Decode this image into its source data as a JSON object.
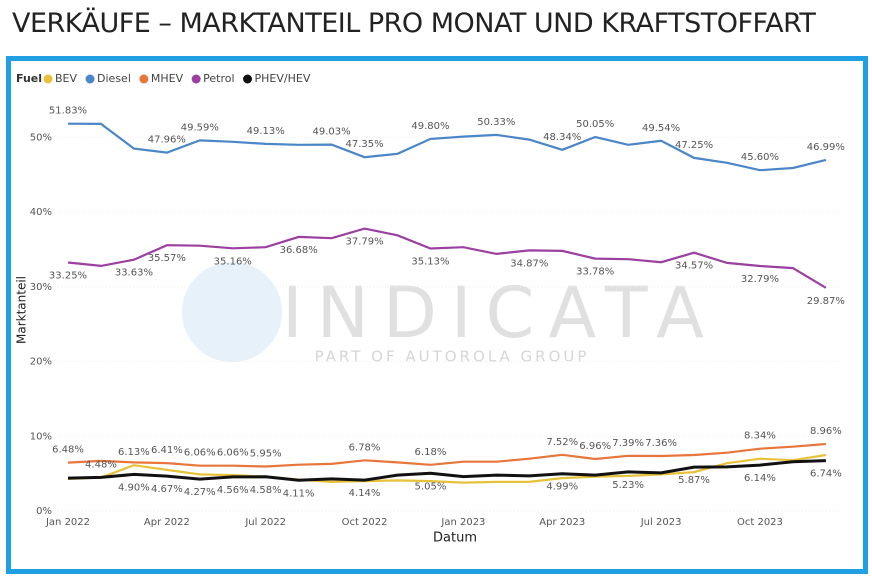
{
  "chart_data": {
    "type": "line",
    "title": "VERKÄUFE – MARKTANTEIL PRO MONAT UND KRAFTSTOFFART",
    "legend_title": "Fuel",
    "x_label": "Datum",
    "y_label": "Marktanteil",
    "watermark": "INDICATA",
    "watermark_subtitle": "PART OF AUTOROLA GROUP",
    "categories": [
      "Jan 2022",
      null,
      null,
      "Apr 2022",
      null,
      null,
      "Jul 2022",
      null,
      null,
      "Oct 2022",
      null,
      null,
      "Jan 2023",
      null,
      null,
      "Apr 2023",
      null,
      null,
      "Jul 2023",
      null,
      null,
      "Oct 2023",
      null,
      null
    ],
    "ylim": [
      0,
      55
    ],
    "yticks": [
      {
        "value": 0,
        "label": "0%"
      },
      {
        "value": 10,
        "label": "10%"
      },
      {
        "value": 20,
        "label": "20%"
      },
      {
        "value": 30,
        "label": "30%"
      },
      {
        "value": 40,
        "label": "40%"
      },
      {
        "value": 50,
        "label": "50%"
      }
    ],
    "series": [
      {
        "name": "BEV",
        "color": "#e6c23a",
        "values": [
          4.3,
          4.48,
          6.13,
          5.5,
          4.9,
          4.8,
          4.6,
          4.2,
          3.9,
          4.0,
          4.1,
          4.0,
          3.8,
          3.9,
          3.9,
          4.4,
          4.6,
          4.7,
          4.9,
          5.2,
          6.4,
          7.0,
          6.8,
          7.5
        ],
        "value_labels": [
          null,
          "4.48%",
          "6.13%",
          null,
          null,
          null,
          null,
          null,
          null,
          null,
          null,
          null,
          null,
          null,
          null,
          null,
          null,
          null,
          null,
          null,
          null,
          null,
          null,
          null
        ]
      },
      {
        "name": "Diesel",
        "color": "#4a86c8",
        "values": [
          51.83,
          51.8,
          48.5,
          47.96,
          49.59,
          49.4,
          49.13,
          49.0,
          49.03,
          47.35,
          47.8,
          49.8,
          50.1,
          50.33,
          49.7,
          48.34,
          50.05,
          49.0,
          49.54,
          47.25,
          46.6,
          45.6,
          45.9,
          46.99
        ],
        "value_labels": [
          "51.83%",
          null,
          null,
          "47.96%",
          "49.59%",
          null,
          "49.13%",
          null,
          "49.03%",
          "47.35%",
          null,
          "49.80%",
          null,
          "50.33%",
          null,
          "48.34%",
          "50.05%",
          null,
          "49.54%",
          "47.25%",
          null,
          "45.60%",
          null,
          "46.99%"
        ]
      },
      {
        "name": "MHEV",
        "color": "#e8763a",
        "values": [
          6.48,
          6.7,
          6.5,
          6.41,
          6.06,
          6.06,
          5.95,
          6.2,
          6.3,
          6.78,
          6.5,
          6.18,
          6.6,
          6.6,
          7.0,
          7.52,
          6.96,
          7.39,
          7.36,
          7.5,
          7.8,
          8.34,
          8.6,
          8.96
        ],
        "value_labels": [
          "6.48%",
          null,
          null,
          "6.41%",
          "6.06%",
          "6.06%",
          "5.95%",
          null,
          null,
          "6.78%",
          null,
          "6.18%",
          null,
          null,
          null,
          "7.52%",
          "6.96%",
          "7.39%",
          "7.36%",
          null,
          null,
          "8.34%",
          null,
          "8.96%"
        ]
      },
      {
        "name": "Petrol",
        "color": "#9b3fa0",
        "values": [
          33.25,
          32.8,
          33.63,
          35.57,
          35.5,
          35.16,
          35.3,
          36.68,
          36.5,
          37.79,
          36.9,
          35.13,
          35.3,
          34.4,
          34.87,
          34.8,
          33.78,
          33.7,
          33.3,
          34.57,
          33.2,
          32.79,
          32.5,
          29.87
        ],
        "value_labels": [
          "33.25%",
          null,
          "33.63%",
          "35.57%",
          null,
          "35.16%",
          null,
          "36.68%",
          null,
          "37.79%",
          null,
          "35.13%",
          null,
          null,
          "34.87%",
          null,
          "33.78%",
          null,
          null,
          "34.57%",
          null,
          "32.79%",
          null,
          "29.87%"
        ]
      },
      {
        "name": "PHEV/HEV",
        "color": "#111111",
        "values": [
          4.4,
          4.5,
          4.9,
          4.67,
          4.27,
          4.56,
          4.58,
          4.11,
          4.3,
          4.14,
          4.8,
          5.05,
          4.6,
          4.8,
          4.7,
          4.99,
          4.8,
          5.23,
          5.1,
          5.87,
          5.9,
          6.14,
          6.6,
          6.74
        ],
        "value_labels": [
          null,
          null,
          "4.90%",
          "4.67%",
          "4.27%",
          "4.56%",
          "4.58%",
          "4.11%",
          null,
          "4.14%",
          null,
          "5.05%",
          null,
          null,
          null,
          "4.99%",
          null,
          "5.23%",
          null,
          "5.87%",
          null,
          "6.14%",
          null,
          "6.74%"
        ]
      }
    ]
  }
}
